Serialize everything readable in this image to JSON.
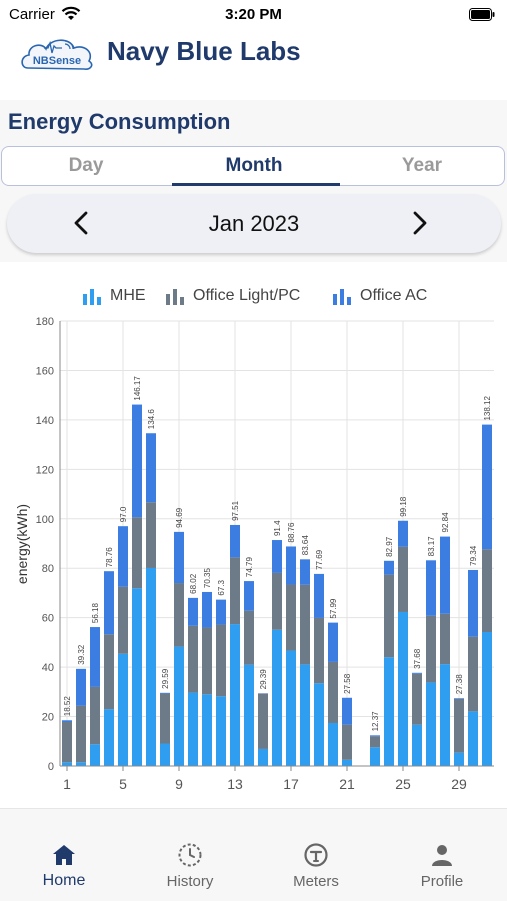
{
  "status_bar": {
    "carrier": "Carrier",
    "time": "3:20 PM"
  },
  "header": {
    "logo_text": "NBSense",
    "title": "Navy Blue Labs"
  },
  "section": {
    "title": "Energy Consumption"
  },
  "tabs": [
    {
      "label": "Day"
    },
    {
      "label": "Month"
    },
    {
      "label": "Year"
    }
  ],
  "period": {
    "label": "Jan 2023"
  },
  "legend": [
    {
      "name": "MHE",
      "color": "#2f9ef0"
    },
    {
      "name": "Office Light/PC",
      "color": "#6d7b88"
    },
    {
      "name": "Office AC",
      "color": "#3b7de0"
    }
  ],
  "chart_data": {
    "type": "bar",
    "stacked": true,
    "ylabel": "energy(kWh)",
    "ylim": [
      0,
      180
    ],
    "yticks": [
      0,
      20,
      40,
      60,
      80,
      100,
      120,
      140,
      160,
      180
    ],
    "xticks": [
      "1",
      "5",
      "9",
      "13",
      "17",
      "21",
      "25",
      "29"
    ],
    "categories": [
      "1",
      "2",
      "3",
      "4",
      "5",
      "6",
      "7",
      "8",
      "9",
      "10",
      "11",
      "12",
      "13",
      "14",
      "15",
      "16",
      "17",
      "18",
      "19",
      "20",
      "21",
      "22",
      "23",
      "24",
      "25",
      "26",
      "27",
      "28",
      "29",
      "30",
      "31"
    ],
    "totals": [
      "18.52",
      "39.32",
      "56.18",
      "78.76",
      "97.0",
      "146.17",
      "134.6",
      "29.59",
      "94.69",
      "68.02",
      "70.35",
      "67.3",
      "97.51",
      "74.79",
      "29.39",
      "91.4",
      "88.76",
      "83.64",
      "77.69",
      "57.99",
      "27.58",
      "",
      "12.37",
      "82.97",
      "99.18",
      "37.68",
      "83.17",
      "92.84",
      "27.38",
      "79.34",
      "138.12"
    ],
    "series": [
      {
        "name": "MHE",
        "values": [
          1.5,
          1.5,
          8.8,
          23.0,
          45.4,
          71.9,
          80.1,
          9.1,
          48.3,
          29.7,
          29.0,
          28.2,
          57.4,
          41.0,
          6.9,
          55.1,
          46.7,
          41.1,
          33.5,
          17.4,
          2.5,
          0,
          7.6,
          44.0,
          62.3,
          16.7,
          33.8,
          41.2,
          5.4,
          22.1,
          54.2
        ]
      },
      {
        "name": "Office Light/PC",
        "values": [
          16.3,
          22.9,
          23.2,
          30.3,
          27.1,
          28.7,
          26.6,
          20.2,
          25.7,
          27.0,
          27.0,
          29.0,
          27.0,
          21.8,
          22.4,
          23.0,
          26.7,
          32.2,
          26.4,
          24.7,
          14.2,
          0,
          4.4,
          33.4,
          26.4,
          20.6,
          27.0,
          20.4,
          21.7,
          30.2,
          33.5
        ]
      },
      {
        "name": "Office AC",
        "values": [
          0.7,
          14.9,
          24.2,
          25.5,
          24.5,
          45.6,
          27.9,
          0.3,
          20.7,
          11.3,
          14.4,
          10.1,
          13.1,
          12.0,
          0.1,
          13.3,
          15.4,
          10.3,
          17.8,
          15.9,
          10.9,
          0,
          0.4,
          5.6,
          10.5,
          0.4,
          22.4,
          31.2,
          0.3,
          27.0,
          50.4
        ]
      }
    ]
  },
  "bottom_nav": [
    {
      "label": "Home",
      "icon": "home-icon",
      "active": true
    },
    {
      "label": "History",
      "icon": "history-icon",
      "active": false
    },
    {
      "label": "Meters",
      "icon": "meter-icon",
      "active": false
    },
    {
      "label": "Profile",
      "icon": "profile-icon",
      "active": false
    }
  ]
}
